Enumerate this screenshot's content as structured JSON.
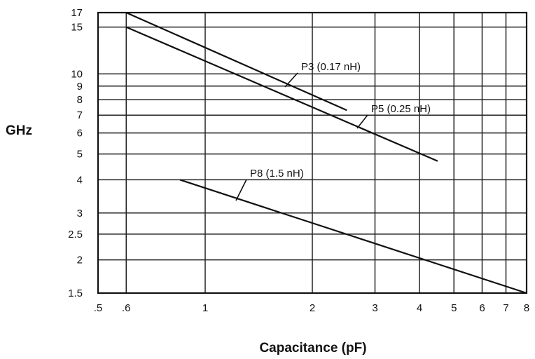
{
  "chart_data": {
    "type": "line",
    "title": "",
    "xlabel": "Capacitance (pF)",
    "ylabel": "GHz",
    "x_scale": "log",
    "y_scale": "log",
    "xlim": [
      0.5,
      8
    ],
    "ylim": [
      1.5,
      17
    ],
    "x_ticks": [
      {
        "value": 0.5,
        "label": ".5"
      },
      {
        "value": 0.6,
        "label": ".6"
      },
      {
        "value": 1,
        "label": "1"
      },
      {
        "value": 2,
        "label": "2"
      },
      {
        "value": 3,
        "label": "3"
      },
      {
        "value": 4,
        "label": "4"
      },
      {
        "value": 5,
        "label": "5"
      },
      {
        "value": 6,
        "label": "6"
      },
      {
        "value": 7,
        "label": "7"
      },
      {
        "value": 8,
        "label": "8"
      }
    ],
    "y_ticks": [
      {
        "value": 1.5,
        "label": "1.5"
      },
      {
        "value": 2,
        "label": "2"
      },
      {
        "value": 2.5,
        "label": "2.5"
      },
      {
        "value": 3,
        "label": "3"
      },
      {
        "value": 4,
        "label": "4"
      },
      {
        "value": 5,
        "label": "5"
      },
      {
        "value": 6,
        "label": "6"
      },
      {
        "value": 7,
        "label": "7"
      },
      {
        "value": 8,
        "label": "8"
      },
      {
        "value": 9,
        "label": "9"
      },
      {
        "value": 10,
        "label": "10"
      },
      {
        "value": 15,
        "label": "15"
      },
      {
        "value": 17,
        "label": "17"
      }
    ],
    "grid": true,
    "series": [
      {
        "name": "P3 (0.17 nH)",
        "x": [
          0.6,
          2.5
        ],
        "y": [
          17,
          7.3
        ]
      },
      {
        "name": "P5 (0.25 nH)",
        "x": [
          0.6,
          4.5
        ],
        "y": [
          15,
          4.7
        ]
      },
      {
        "name": "P8 (1.5 nH)",
        "x": [
          0.85,
          8
        ],
        "y": [
          4,
          1.5
        ]
      }
    ]
  }
}
